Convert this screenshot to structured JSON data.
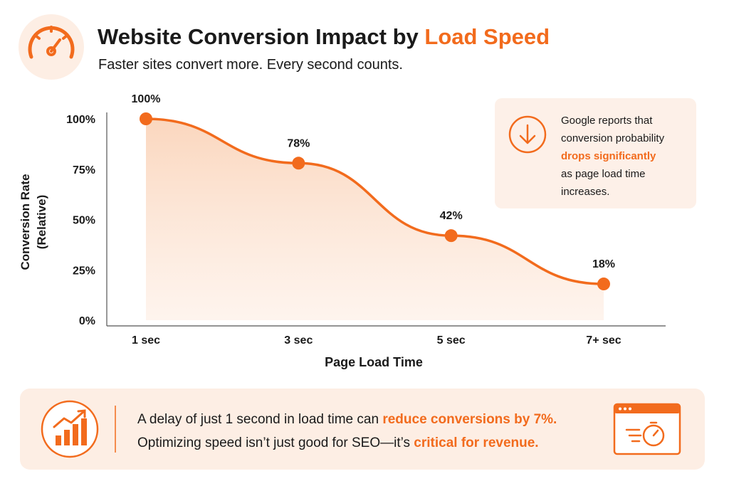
{
  "header": {
    "title": "Website Conversion Impact by",
    "title_highlight": "Load Speed",
    "subtitle": "Faster sites convert more. Every second counts."
  },
  "chart_data": {
    "type": "line",
    "categories": [
      "1 sec",
      "3 sec",
      "5 sec",
      "7+ sec"
    ],
    "values": [
      100,
      78,
      42,
      18
    ],
    "value_labels": [
      "100%",
      "78%",
      "42%",
      "18%"
    ],
    "color": "#f26b1d",
    "xlabel": "Page Load Time",
    "ylabel": [
      "Conversion Rate",
      "(Relative)"
    ],
    "ylim": [
      0,
      100
    ],
    "yticks": [
      {
        "value": 0,
        "label": "0%"
      },
      {
        "value": 25,
        "label": "25%"
      },
      {
        "value": 50,
        "label": "50%"
      },
      {
        "value": 75,
        "label": "75%"
      },
      {
        "value": 100,
        "label": "100%"
      }
    ],
    "grid": false
  },
  "callout": {
    "text_before": [
      "Google reports that",
      "conversion probability"
    ],
    "highlight": "drops significantly",
    "text_after": [
      "as page load time",
      "increases."
    ]
  },
  "banner": {
    "lines": [
      {
        "text": "A delay of just 1 second in load time can",
        "highlight": "reduce conversions by 7%."
      },
      {
        "text": "Optimizing speed isn’t just good for SEO—it’s",
        "highlight": "critical for revenue."
      }
    ]
  }
}
